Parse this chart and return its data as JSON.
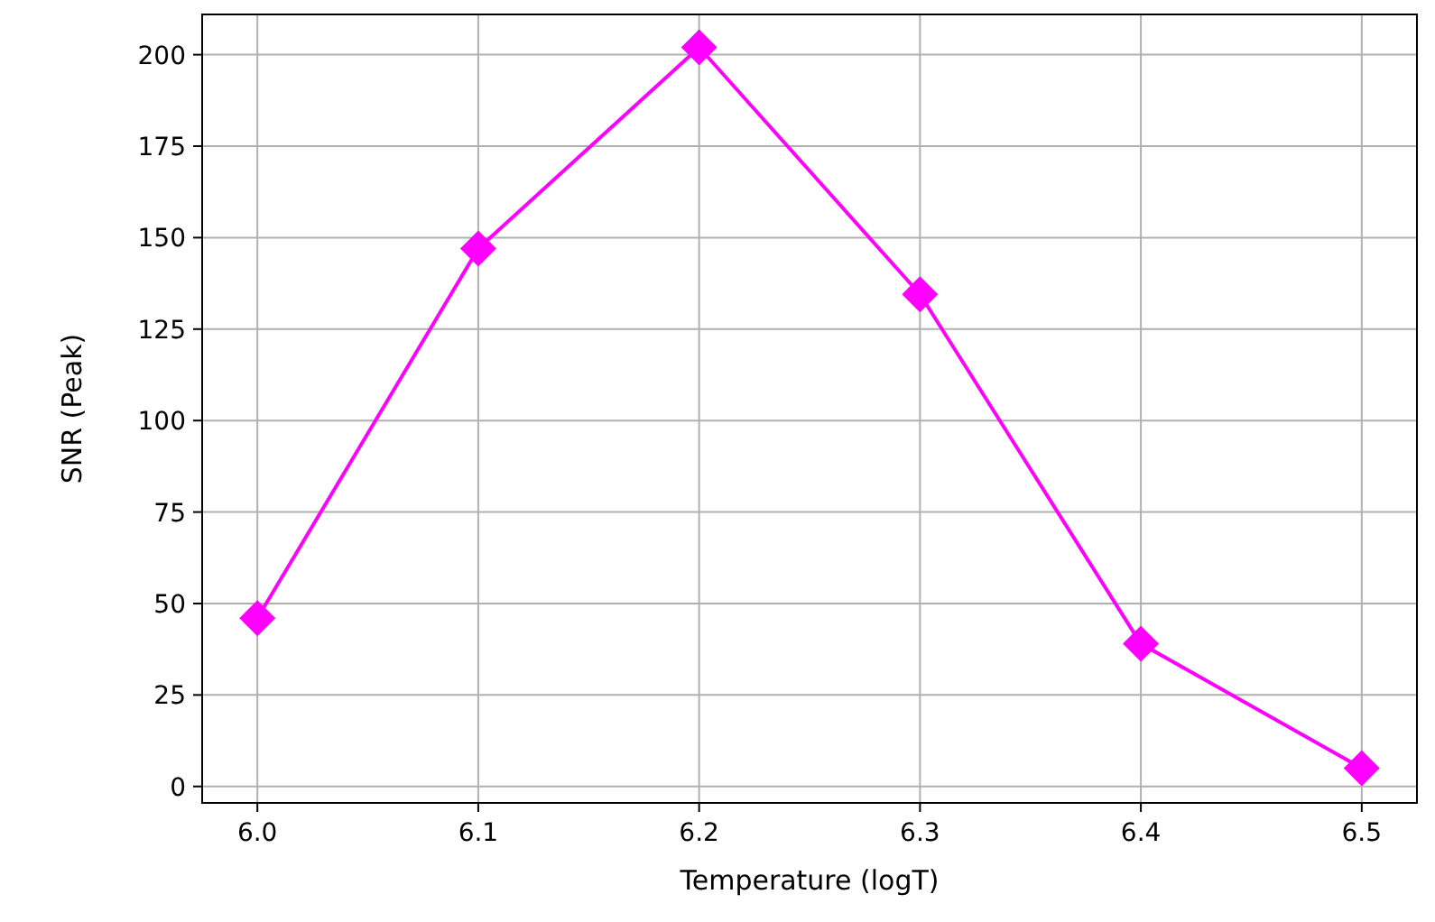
{
  "chart_data": {
    "type": "line",
    "xlabel": "Temperature (logT)",
    "ylabel": "SNR (Peak)",
    "x": [
      6.0,
      6.1,
      6.2,
      6.3,
      6.4,
      6.5
    ],
    "series": [
      {
        "color": "#ff00ff",
        "values": [
          46,
          147,
          202,
          134.5,
          39,
          5
        ]
      }
    ],
    "xlim": [
      5.975,
      6.525
    ],
    "xticks": [
      {
        "value": 6.0,
        "label": "6.0"
      },
      {
        "value": 6.1,
        "label": "6.1"
      },
      {
        "value": 6.2,
        "label": "6.2"
      },
      {
        "value": 6.3,
        "label": "6.3"
      },
      {
        "value": 6.4,
        "label": "6.4"
      },
      {
        "value": 6.5,
        "label": "6.5"
      }
    ],
    "ylim": [
      -4.5,
      211
    ],
    "yticks": [
      0,
      25,
      50,
      75,
      100,
      125,
      150,
      175,
      200
    ],
    "grid": true,
    "marker": "diamond",
    "line_style": "solid"
  }
}
